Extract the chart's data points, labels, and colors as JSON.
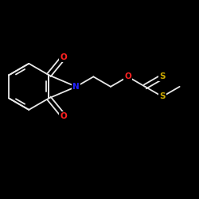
{
  "background_color": "#000000",
  "atom_colors": {
    "N": "#2222ff",
    "O": "#ff2222",
    "S": "#ccaa00"
  },
  "bond_color": "#e8e8e8",
  "figsize": [
    2.5,
    2.5
  ],
  "dpi": 100,
  "lw": 1.3,
  "font_size": 7.5
}
